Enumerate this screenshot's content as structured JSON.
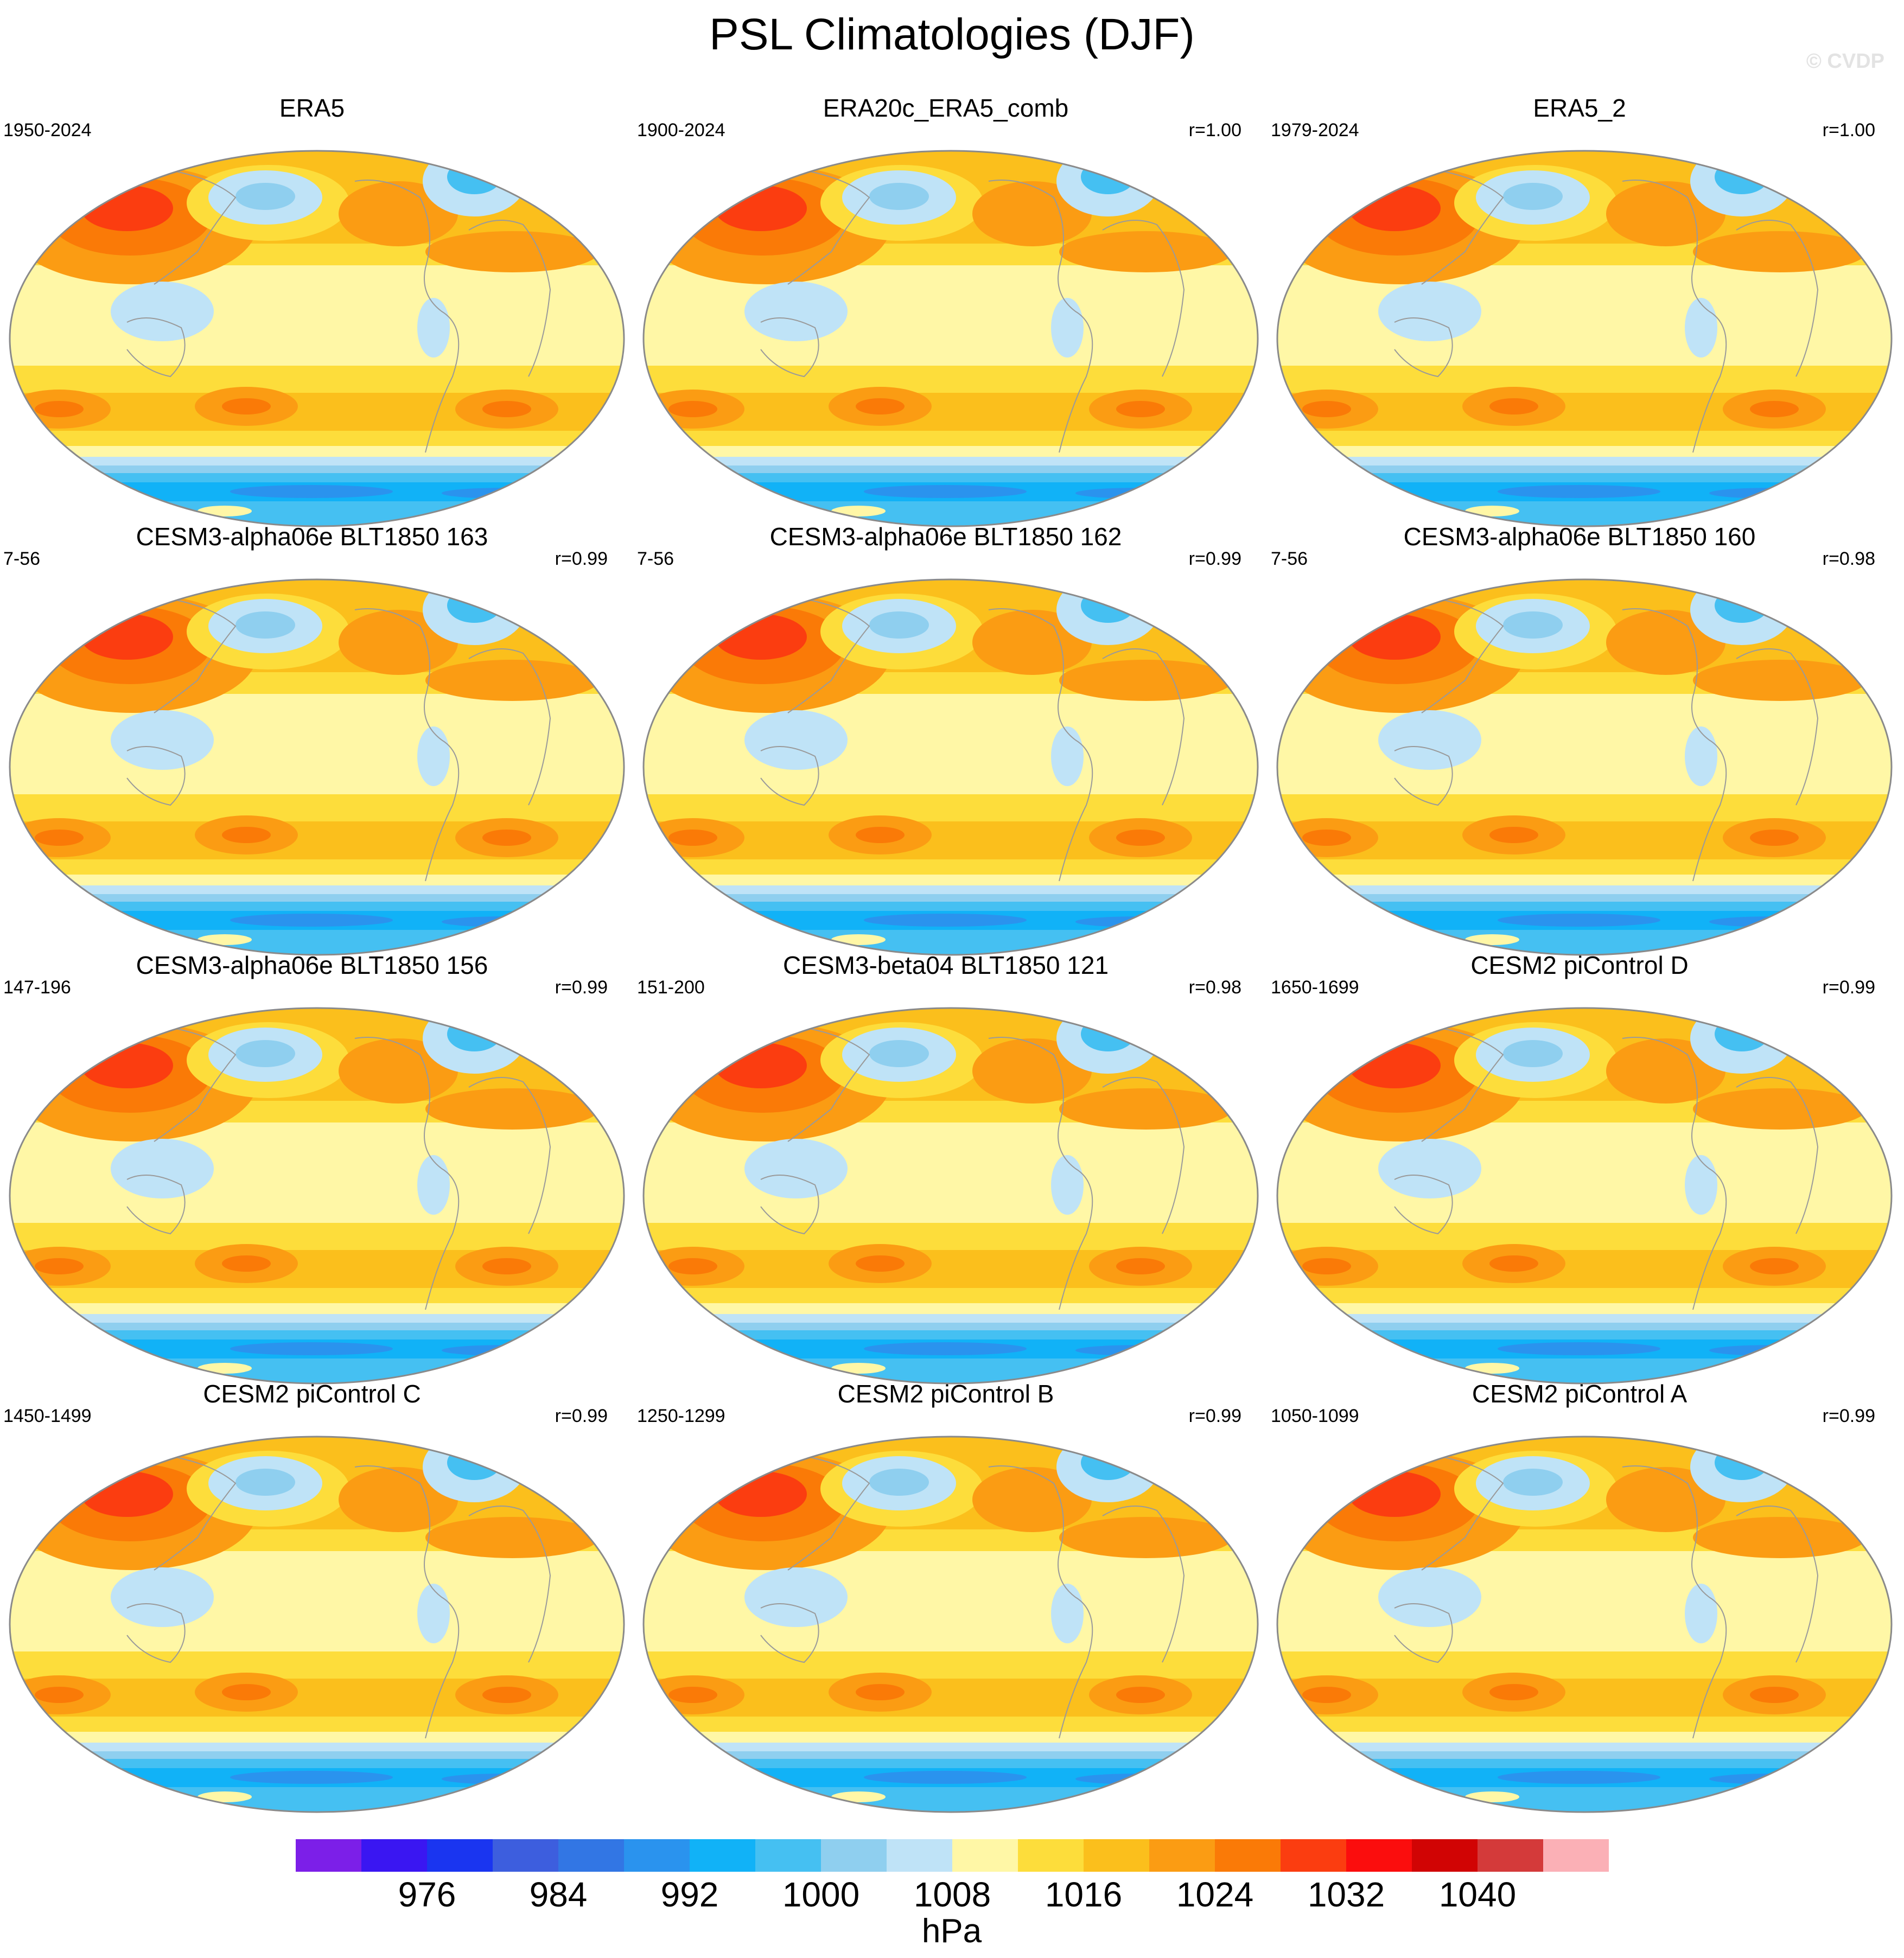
{
  "title": "PSL Climatologies (DJF)",
  "watermark": "© CVDP",
  "panels": [
    {
      "name": "ERA5",
      "period": "1950-2024",
      "r": ""
    },
    {
      "name": "ERA20c_ERA5_comb",
      "period": "1900-2024",
      "r": "r=1.00"
    },
    {
      "name": "ERA5_2",
      "period": "1979-2024",
      "r": "r=1.00"
    },
    {
      "name": "CESM3-alpha06e BLT1850 163",
      "period": "7-56",
      "r": "r=0.99"
    },
    {
      "name": "CESM3-alpha06e BLT1850 162",
      "period": "7-56",
      "r": "r=0.99"
    },
    {
      "name": "CESM3-alpha06e BLT1850 160",
      "period": "7-56",
      "r": "r=0.98"
    },
    {
      "name": "CESM3-alpha06e BLT1850 156",
      "period": "147-196",
      "r": "r=0.99"
    },
    {
      "name": "CESM3-beta04 BLT1850 121",
      "period": "151-200",
      "r": "r=0.98"
    },
    {
      "name": "CESM2 piControl D",
      "period": "1650-1699",
      "r": "r=0.99"
    },
    {
      "name": "CESM2 piControl C",
      "period": "1450-1499",
      "r": "r=0.99"
    },
    {
      "name": "CESM2 piControl B",
      "period": "1250-1299",
      "r": "r=0.99"
    },
    {
      "name": "CESM2 piControl A",
      "period": "1050-1099",
      "r": "r=0.99"
    }
  ],
  "colorbar": {
    "units": "hPa",
    "colors": [
      "#7c1fe8",
      "#3a16f2",
      "#1a35f0",
      "#3d5ede",
      "#3276e4",
      "#2a93ee",
      "#11b2f7",
      "#45c0f2",
      "#8fcfef",
      "#bfe3f7",
      "#fff7a6",
      "#fddd3b",
      "#fbbf1c",
      "#fb9c13",
      "#fa7a07",
      "#fb3d10",
      "#fb0d0d",
      "#d10404",
      "#d43a3a",
      "#fbb0b6"
    ],
    "labels": [
      "976",
      "984",
      "992",
      "1000",
      "1008",
      "1016",
      "1024",
      "1032",
      "1040"
    ]
  }
}
